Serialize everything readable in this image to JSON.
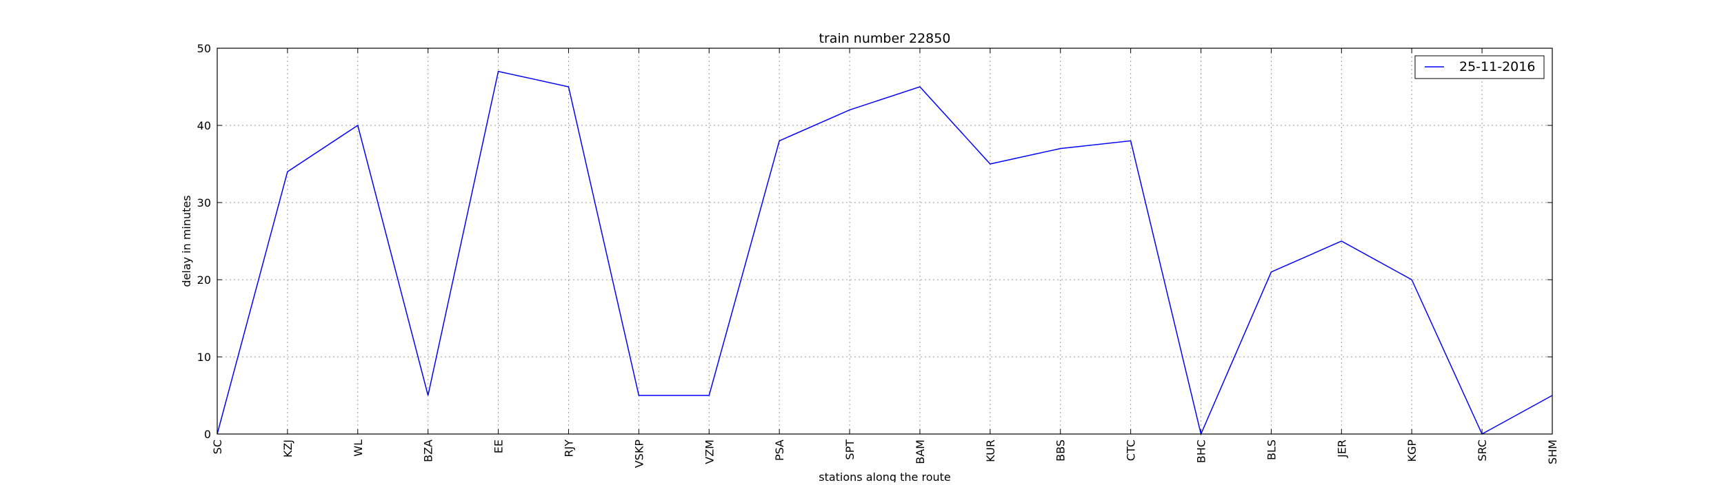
{
  "chart_data": {
    "type": "line",
    "title": "train number 22850",
    "xlabel": "stations along the route",
    "ylabel": "delay in minutes",
    "categories": [
      "SC",
      "KZJ",
      "WL",
      "BZA",
      "EE",
      "RJY",
      "VSKP",
      "VZM",
      "PSA",
      "SPT",
      "BAM",
      "KUR",
      "BBS",
      "CTC",
      "BHC",
      "BLS",
      "JER",
      "KGP",
      "SRC",
      "SHM"
    ],
    "series": [
      {
        "name": "25-11-2016",
        "color": "#0000ff",
        "values": [
          0,
          34,
          40,
          5,
          47,
          45,
          5,
          5,
          38,
          42,
          45,
          35,
          37,
          38,
          0,
          21,
          25,
          20,
          0,
          5
        ]
      }
    ],
    "ylim": [
      0,
      50
    ],
    "yticks": [
      0,
      10,
      20,
      30,
      40,
      50
    ],
    "grid": true,
    "legend_position": "top-right"
  }
}
